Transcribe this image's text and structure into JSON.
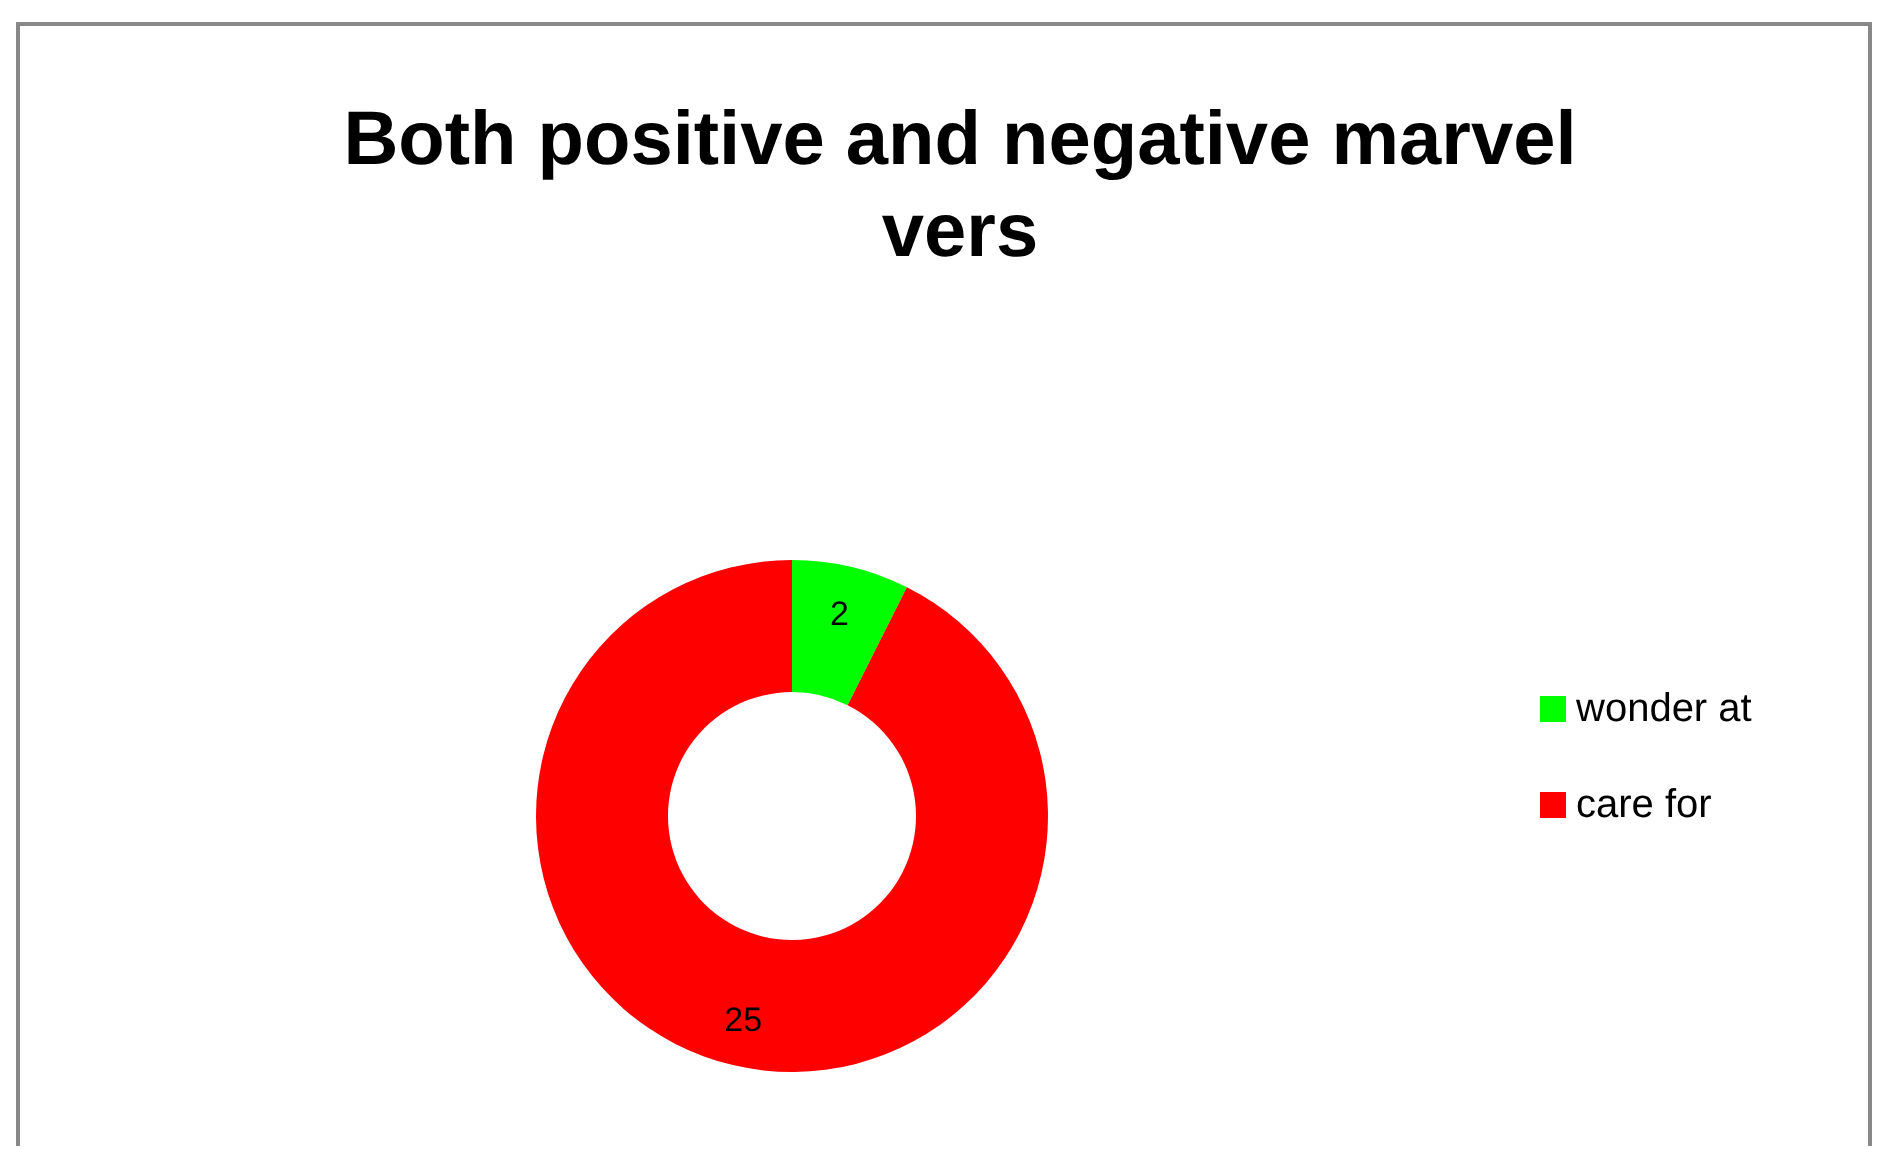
{
  "chart_data": {
    "type": "donut",
    "title": "Both positive and negative marvel vers",
    "categories": [
      "wonder at",
      "care for"
    ],
    "values": [
      2,
      25
    ],
    "colors": [
      "#00ff00",
      "#ff0000"
    ],
    "data_labels": true,
    "legend": "right"
  }
}
